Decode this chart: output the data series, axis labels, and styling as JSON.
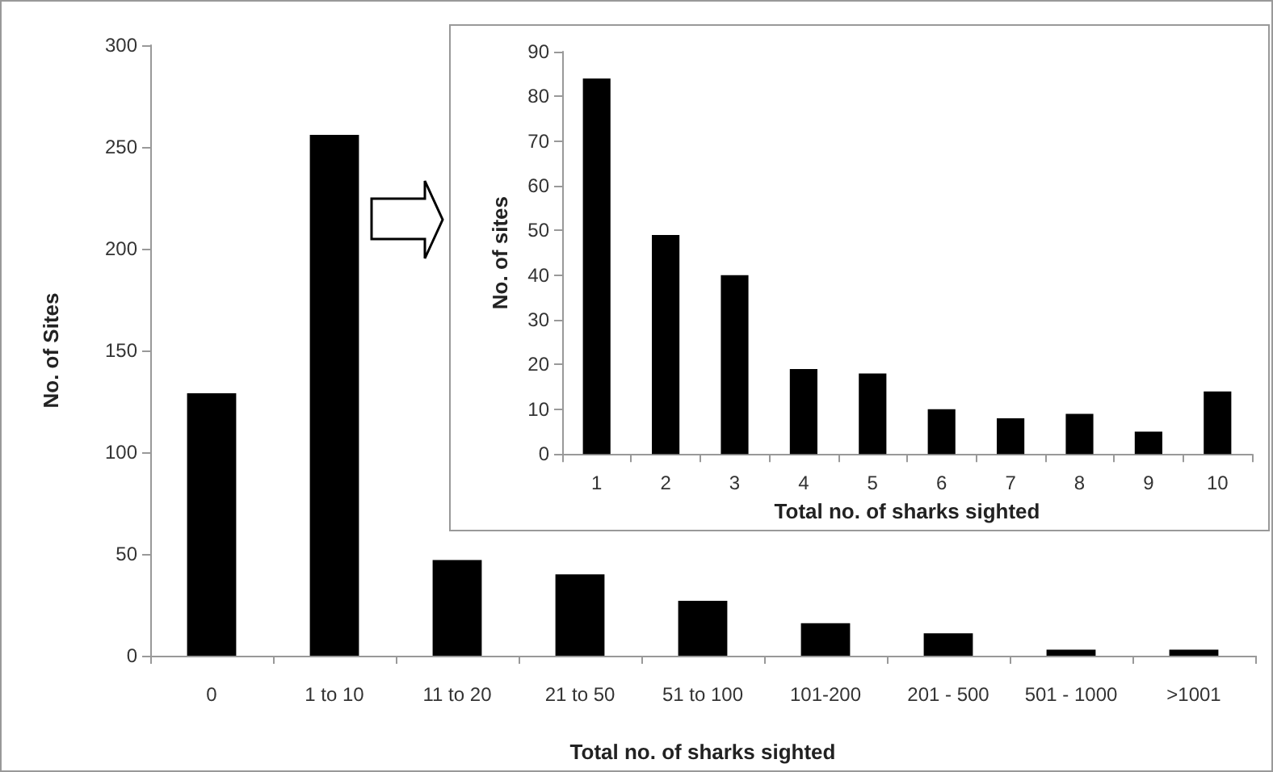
{
  "chart_data": [
    {
      "type": "bar",
      "xlabel": "Total no. of sharks sighted",
      "ylabel": "No. of Sites",
      "categories": [
        "0",
        "1 to 10",
        "11 to 20",
        "21 to 50",
        "51 to 100",
        "101-200",
        "201 - 500",
        "501 - 1000",
        ">1001"
      ],
      "values": [
        129,
        256,
        47,
        40,
        27,
        16,
        11,
        3,
        3
      ],
      "color": "#000000",
      "ylim": [
        0,
        300
      ],
      "yticks": [
        0,
        50,
        100,
        150,
        200,
        250,
        300
      ],
      "grid": false
    },
    {
      "type": "bar",
      "xlabel": "Total no. of sharks sighted",
      "ylabel": "No. of sites",
      "categories": [
        "1",
        "2",
        "3",
        "4",
        "5",
        "6",
        "7",
        "8",
        "9",
        "10"
      ],
      "values": [
        84,
        49,
        40,
        19,
        18,
        10,
        8,
        9,
        5,
        14
      ],
      "color": "#000000",
      "ylim": [
        0,
        90
      ],
      "yticks": [
        0,
        10,
        20,
        30,
        40,
        50,
        60,
        70,
        80,
        90
      ],
      "grid": false
    }
  ]
}
